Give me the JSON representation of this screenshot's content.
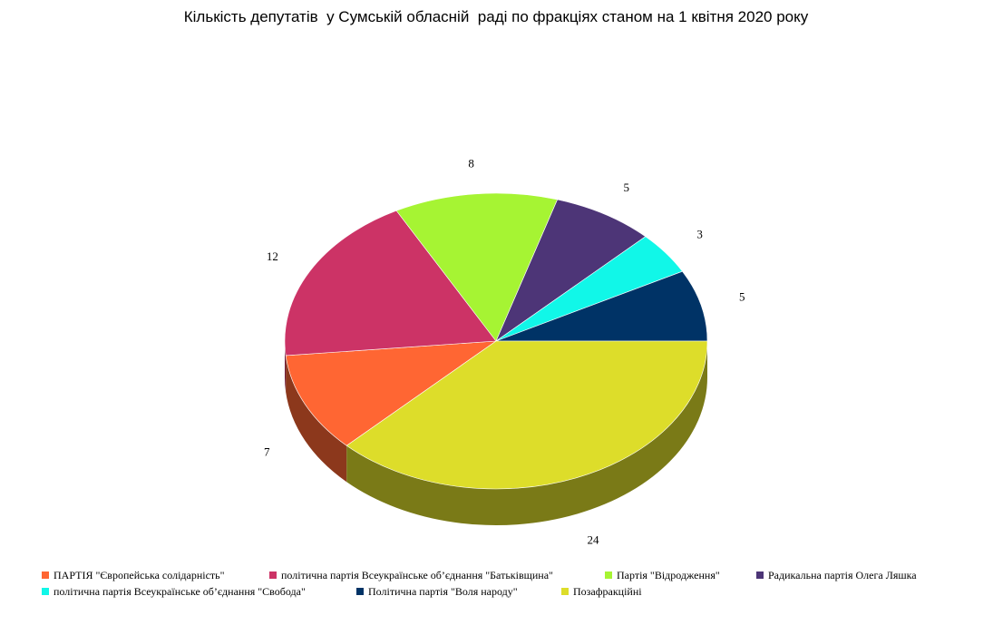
{
  "chart_data": {
    "type": "pie",
    "title": "Кількість депутатів  у Сумській обласній  раді по фракціях станом на 1 квітня 2020 року",
    "categories": [
      "ПАРТІЯ \"Європейська солідарність\"",
      "політична партія Всеукраїнське об’єднання \"Батьківщина\"",
      "Партія \"Відродження\"",
      "Радикальна партія Олега Ляшка",
      "політична партія Всеукраїнське об’єднання \"Свобода\"",
      "Політична партія \"Воля народу\"",
      "Позафракційні"
    ],
    "values": [
      7,
      12,
      8,
      5,
      3,
      5,
      24
    ],
    "colors": [
      "#ff6633",
      "#cc3366",
      "#a6f433",
      "#4d3577",
      "#11f7e8",
      "#003366",
      "#dddd2a"
    ],
    "legend": "bottom"
  }
}
